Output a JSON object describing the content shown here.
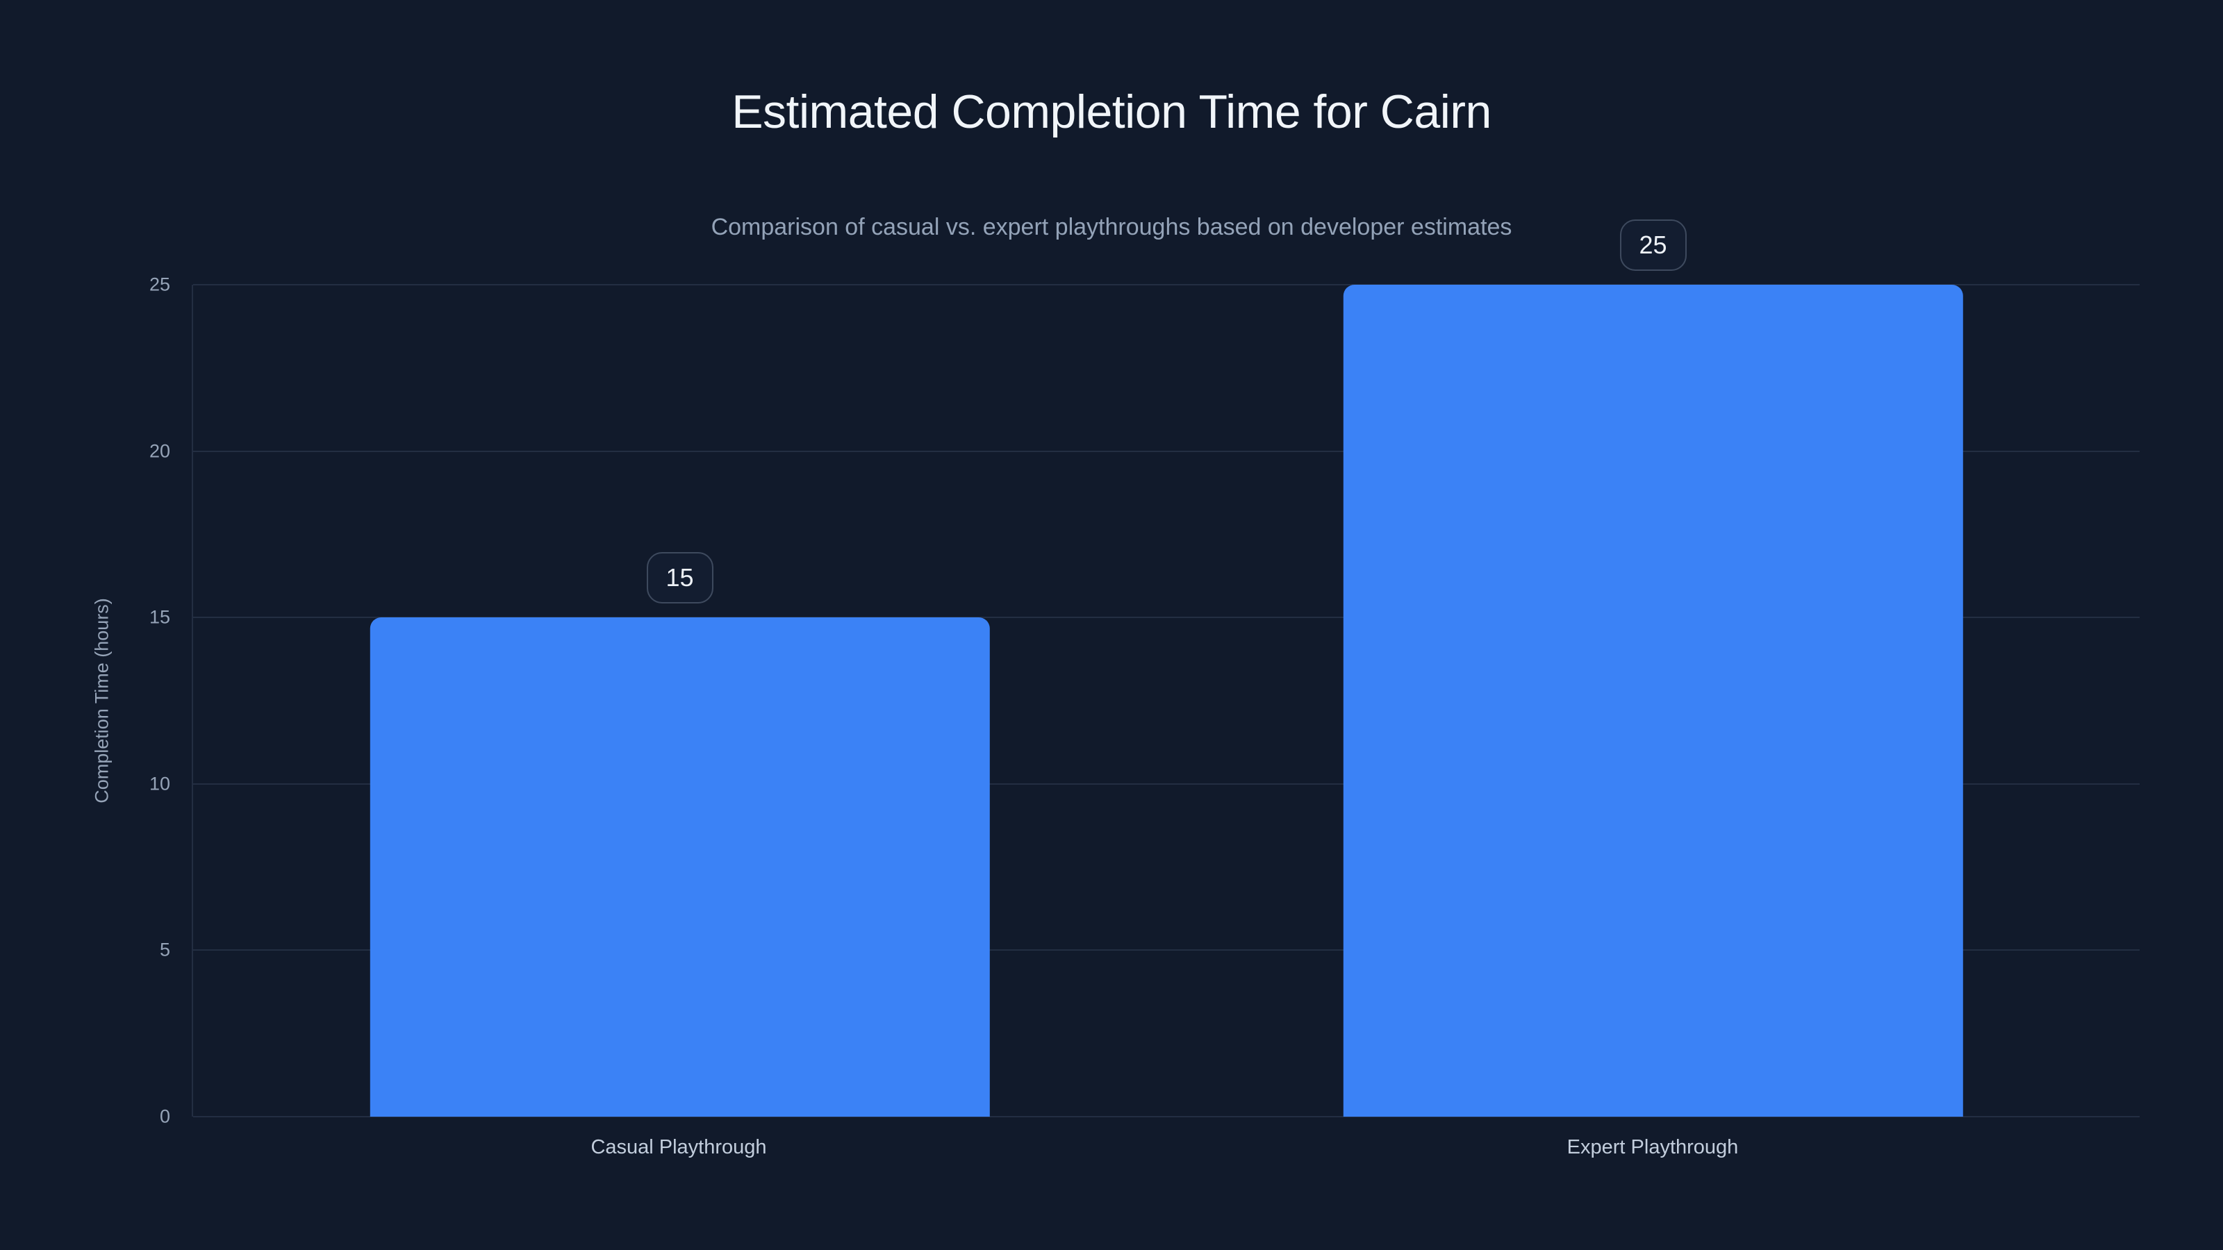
{
  "chart_data": {
    "type": "bar",
    "title": "Estimated Completion Time for Cairn",
    "subtitle": "Comparison of casual vs. expert playthroughs based on developer estimates",
    "categories": [
      "Casual Playthrough",
      "Expert Playthrough"
    ],
    "values": [
      15,
      25
    ],
    "value_labels": [
      "15",
      "25"
    ],
    "xlabel": "",
    "ylabel": "Completion Time (hours)",
    "ylim": [
      0,
      25
    ],
    "yticks": [
      0,
      5,
      10,
      15,
      20,
      25
    ],
    "grid": "horizontal",
    "legend": "none",
    "bar_width_fraction": 0.637,
    "colors": {
      "background": "#111a2b",
      "bar": "#3b82f6",
      "title_text": "#f1f5f9",
      "subtitle_text": "#94a3b8",
      "tick_text": "#96a4b8",
      "category_text": "#c3cedd",
      "gridline": "#232e42",
      "badge_border": "#3e4a5e",
      "badge_background": "#131d30",
      "badge_text": "#eef2f7"
    }
  }
}
